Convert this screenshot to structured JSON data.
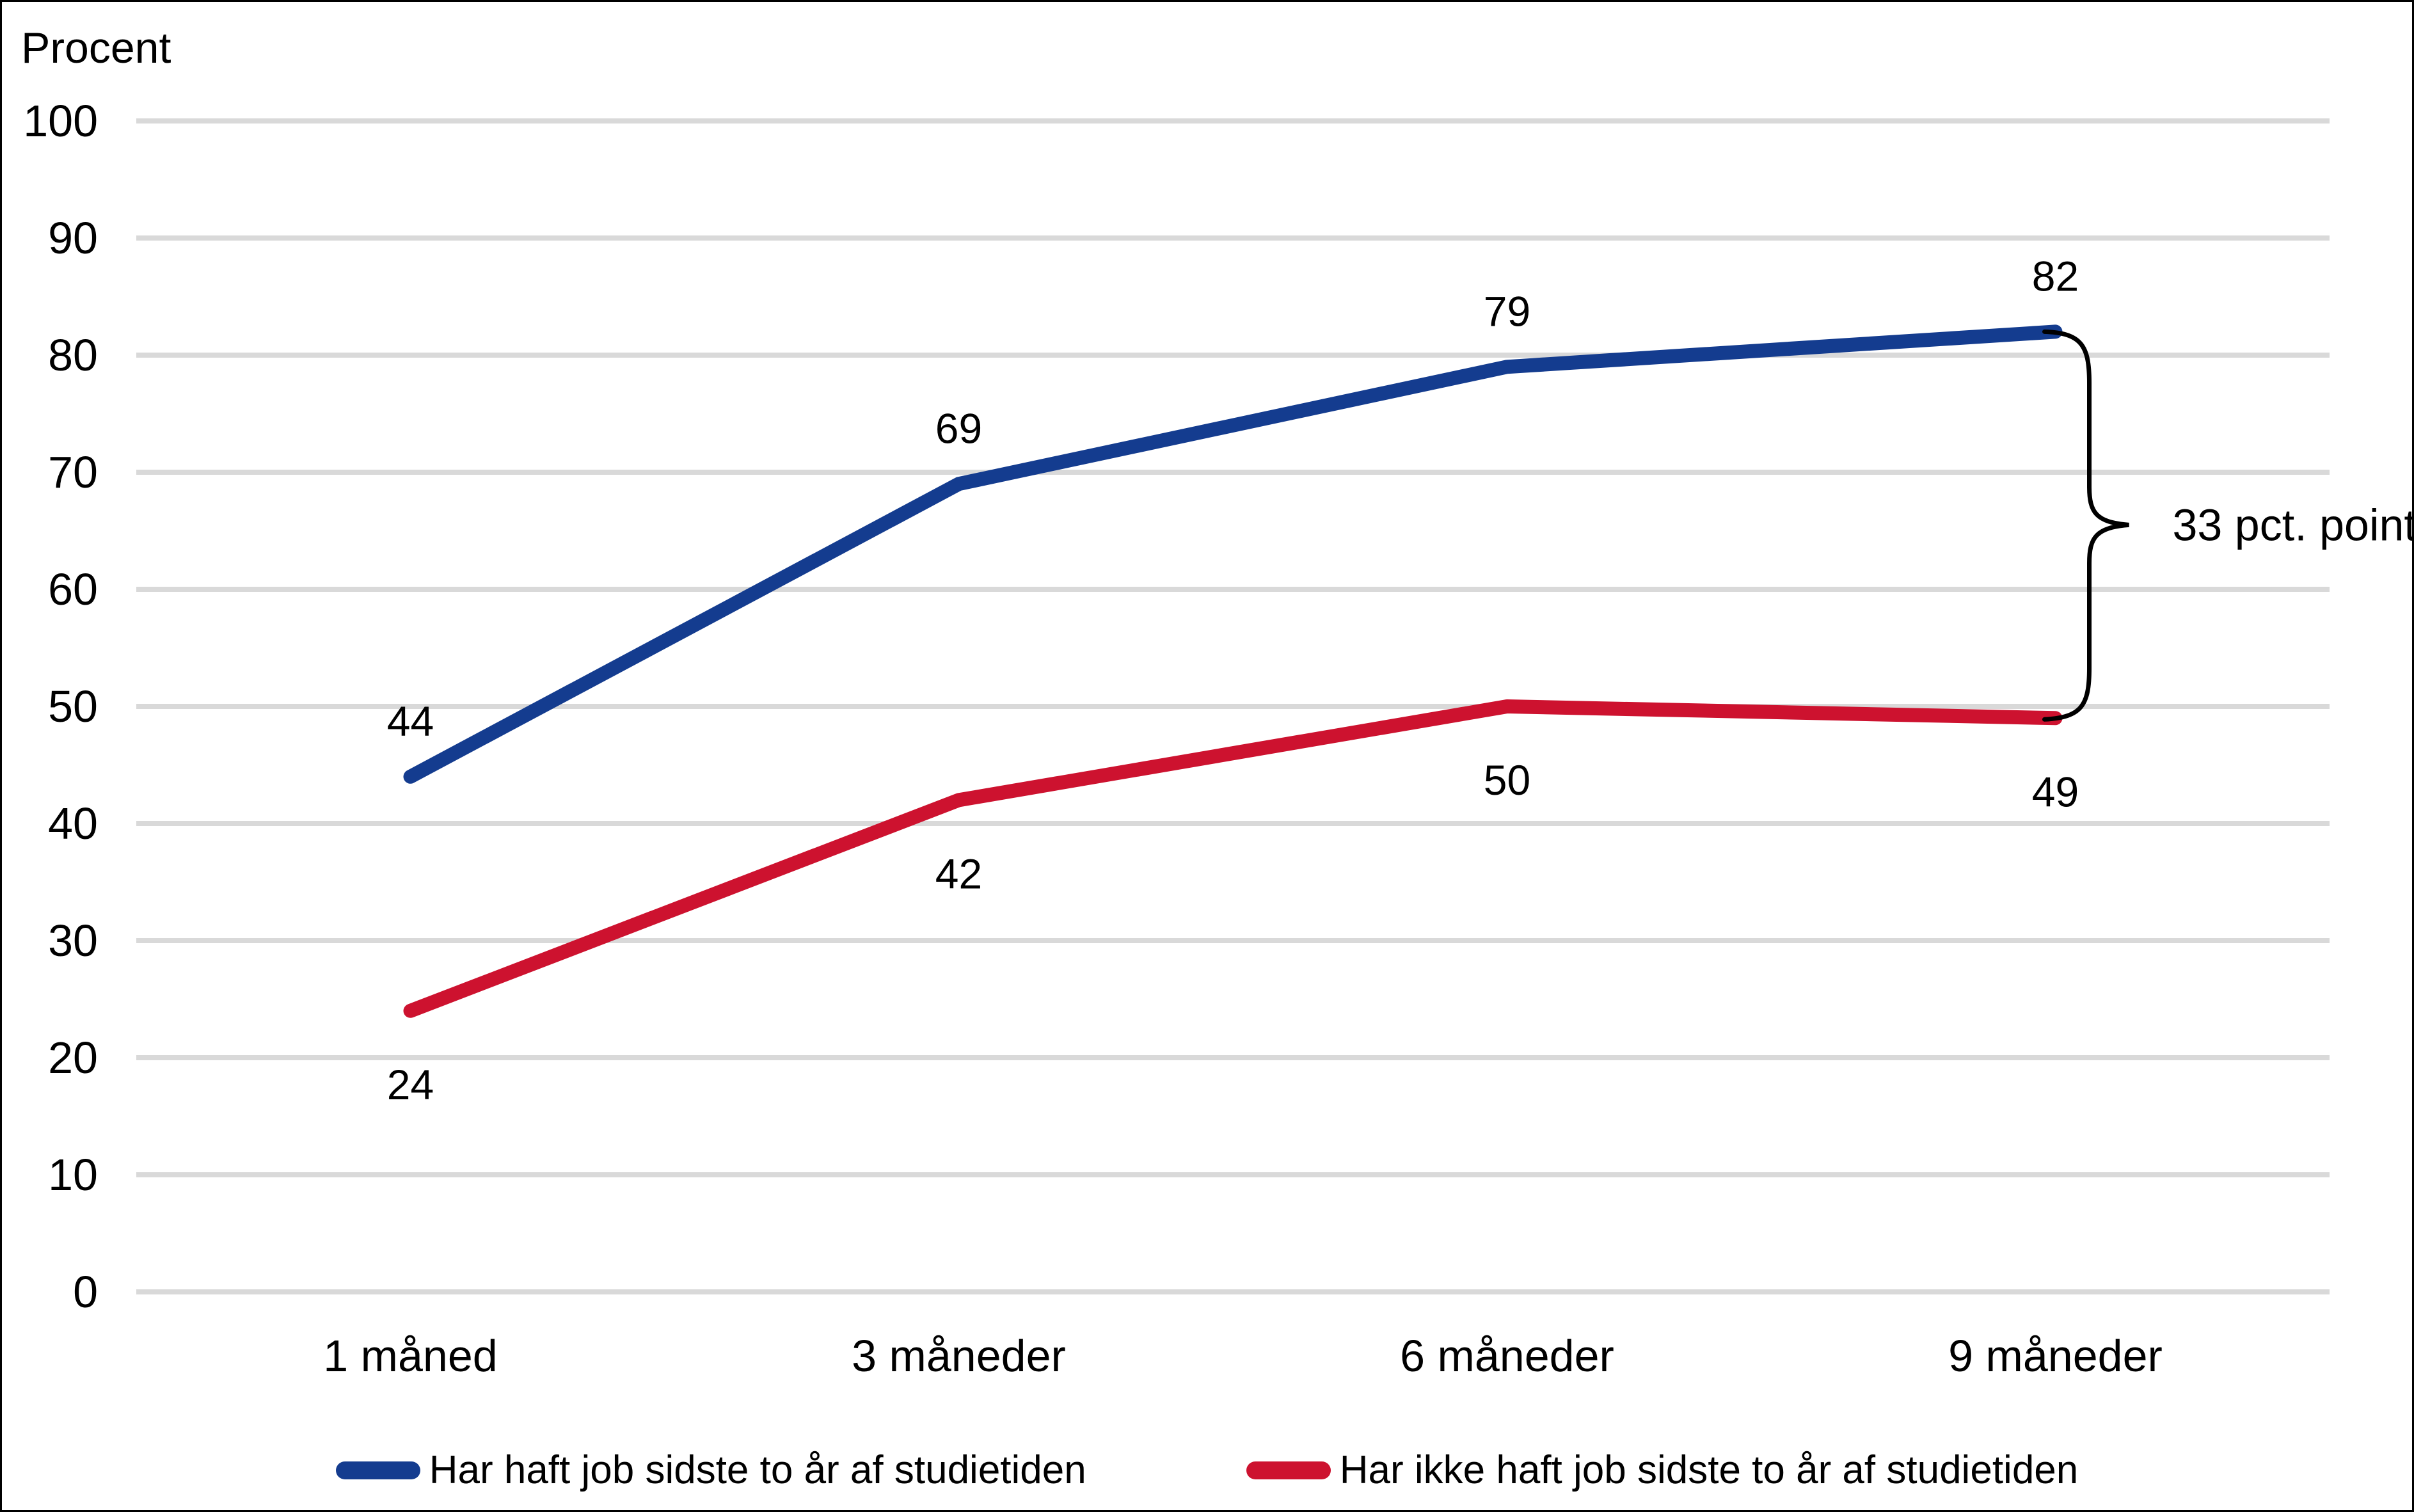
{
  "chart_data": {
    "type": "line",
    "title": "Procent",
    "categories": [
      "1 måned",
      "3 måneder",
      "6 måneder",
      "9 måneder"
    ],
    "series": [
      {
        "name": "Har haft job sidste to år af studietiden",
        "values": [
          44,
          69,
          79,
          82
        ],
        "color": "#143C8F"
      },
      {
        "name": "Har ikke haft job sidste to år af studietiden",
        "values": [
          24,
          42,
          50,
          49
        ],
        "color": "#CD122F"
      }
    ],
    "ylabel": "Procent",
    "xlabel": "",
    "ylim": [
      0,
      100
    ],
    "ytick_step": 10,
    "yticks": [
      0,
      10,
      20,
      30,
      40,
      50,
      60,
      70,
      80,
      90,
      100
    ],
    "grid": true,
    "grid_color": "#D9D9D9",
    "legend_position": "bottom",
    "annotation": {
      "text": "33 pct. point",
      "between_series_values": [
        82,
        49
      ],
      "at_category": "9 måneder"
    }
  }
}
